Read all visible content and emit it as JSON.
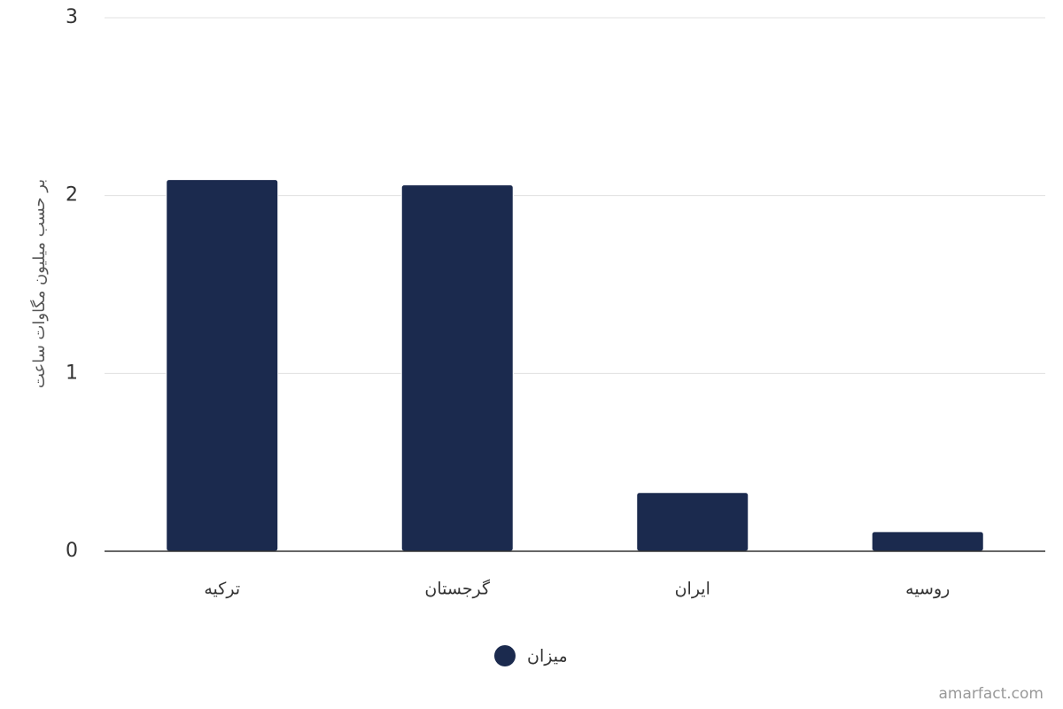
{
  "chart_data": {
    "type": "bar",
    "y_axis_label": "بر حسب میلیون مگاوات ساعت",
    "categories": [
      "ترکیه",
      "گرجستان",
      "ایران",
      "روسیه"
    ],
    "series": [
      {
        "name": "میزان",
        "color": "#1b2a4e",
        "values": [
          2.09,
          2.06,
          0.33,
          0.11
        ]
      }
    ],
    "ylim": [
      0,
      3
    ],
    "yticks": [
      0,
      1,
      2,
      3
    ],
    "grid": true,
    "legend": "bottom",
    "credit": "amarfact.com"
  }
}
